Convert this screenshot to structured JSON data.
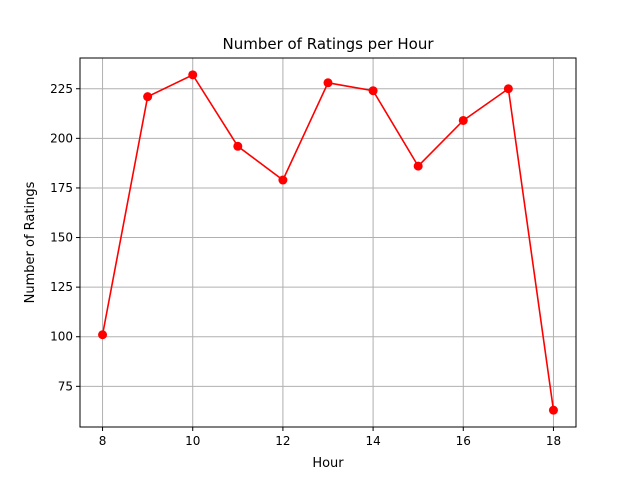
{
  "chart_data": {
    "type": "line",
    "title": "Number of Ratings per Hour",
    "xlabel": "Hour",
    "ylabel": "Number of Ratings",
    "x": [
      8,
      9,
      10,
      11,
      12,
      13,
      14,
      15,
      16,
      17,
      18
    ],
    "series": [
      {
        "values": [
          101,
          221,
          232,
          196,
          179,
          228,
          224,
          186,
          209,
          225,
          63
        ],
        "color": "#ff0000",
        "marker": "circle"
      }
    ],
    "xlim": [
      7.5,
      18.5
    ],
    "ylim": [
      54.5,
      240.5
    ],
    "xticks": [
      8,
      10,
      12,
      14,
      16,
      18
    ],
    "yticks": [
      75,
      100,
      125,
      150,
      175,
      200,
      225
    ],
    "grid": true
  }
}
